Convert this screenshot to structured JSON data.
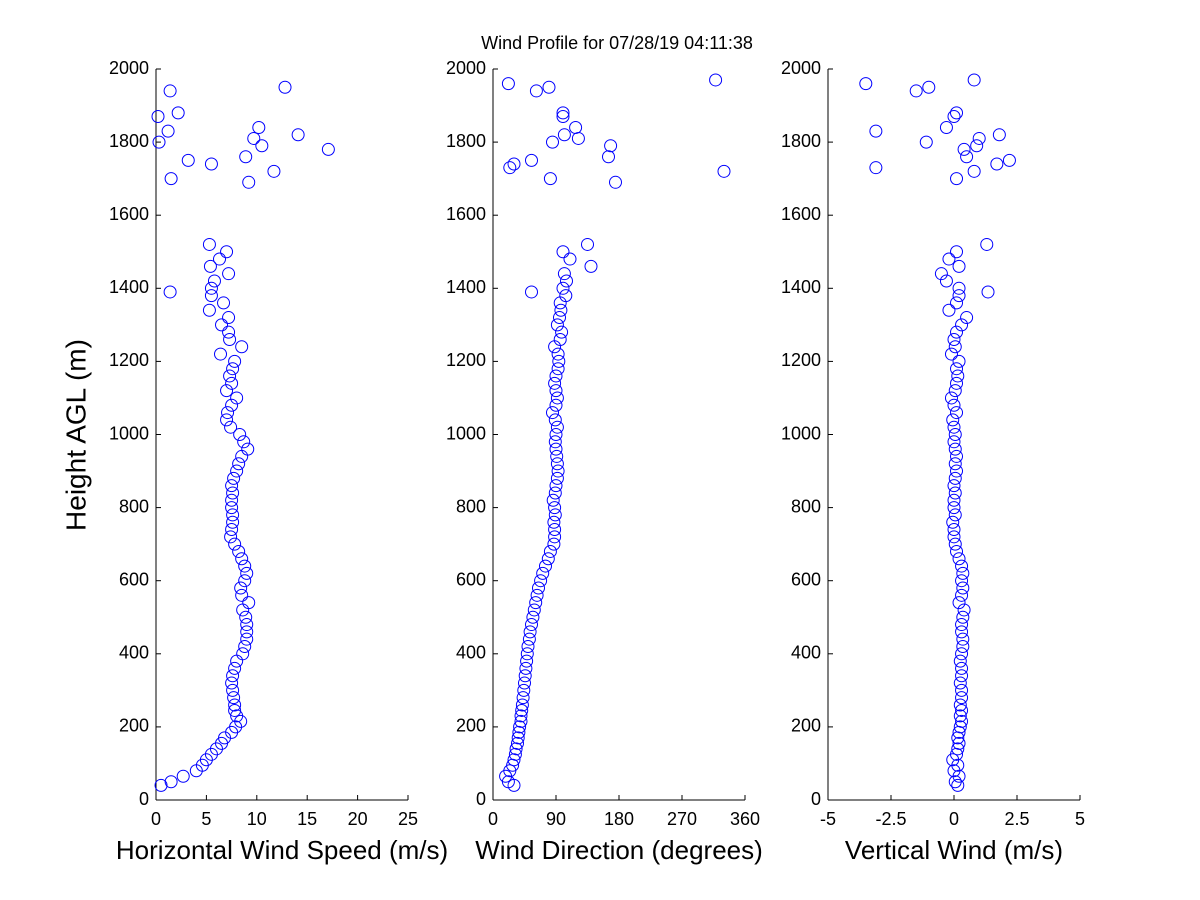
{
  "title": "Wind Profile for  07/28/19 04:11:38",
  "chart_data": [
    {
      "type": "scatter",
      "xlabel": "Horizontal Wind Speed (m/s)",
      "ylabel": "Height AGL (m)",
      "color": "#0000ff",
      "xlim": [
        0,
        25
      ],
      "xticks": [
        0,
        5,
        10,
        15,
        20,
        25
      ],
      "ylim": [
        0,
        2000
      ],
      "yticks": [
        0,
        200,
        400,
        600,
        800,
        1000,
        1200,
        1400,
        1600,
        1800,
        2000
      ],
      "x": [
        0.5,
        1.5,
        2.7,
        4,
        4.6,
        5,
        5.5,
        6,
        6.5,
        6.8,
        7.5,
        7.9,
        8.4,
        8,
        7.8,
        7.8,
        7.7,
        7.6,
        7.5,
        7.6,
        7.8,
        8,
        8.6,
        8.8,
        9,
        9,
        9,
        8.9,
        8.6,
        9.2,
        8.5,
        8.4,
        8.8,
        9,
        8.8,
        8.5,
        8.2,
        7.8,
        7.4,
        7.5,
        7.6,
        7.6,
        7.5,
        7.5,
        7.6,
        7.5,
        7.7,
        8,
        8.2,
        8.5,
        9.1,
        8.7,
        8.3,
        7.4,
        7,
        7.1,
        7.5,
        8,
        7,
        7.5,
        7.3,
        7.6,
        7.8,
        6.4,
        8.5,
        7.3,
        7.2,
        6.5,
        7.2,
        5.3,
        6.7,
        5.5,
        5.5,
        5.8,
        7.2,
        5.4,
        6.3,
        7,
        5.3,
        1.4,
        0.2,
        0.3,
        1.2,
        1.4,
        2.2,
        1.5,
        3.2,
        5.5,
        8.9,
        9.2,
        9.7,
        10.2,
        10.5,
        11.7,
        12.8,
        14.1,
        17.1
      ],
      "values": [
        40,
        50,
        65,
        80,
        95,
        110,
        125,
        140,
        155,
        170,
        185,
        200,
        215,
        230,
        245,
        260,
        280,
        300,
        320,
        340,
        360,
        380,
        400,
        420,
        440,
        460,
        480,
        500,
        520,
        540,
        560,
        580,
        600,
        620,
        640,
        660,
        680,
        700,
        720,
        740,
        760,
        780,
        800,
        820,
        840,
        860,
        880,
        900,
        920,
        940,
        960,
        980,
        1000,
        1020,
        1040,
        1060,
        1080,
        1100,
        1120,
        1140,
        1160,
        1180,
        1200,
        1220,
        1240,
        1260,
        1280,
        1300,
        1320,
        1340,
        1360,
        1380,
        1400,
        1420,
        1440,
        1460,
        1480,
        1500,
        1520,
        1390,
        1870,
        1800,
        1830,
        1940,
        1880,
        1700,
        1750,
        1740,
        1760,
        1690,
        1810,
        1840,
        1790,
        1720,
        1950,
        1820,
        1780
      ]
    },
    {
      "type": "scatter",
      "xlabel": "Wind Direction (degrees)",
      "color": "#0000ff",
      "xlim": [
        0,
        360
      ],
      "xticks": [
        0,
        90,
        180,
        270,
        360
      ],
      "ylim": [
        0,
        2000
      ],
      "yticks": [
        0,
        200,
        400,
        600,
        800,
        1000,
        1200,
        1400,
        1600,
        1800,
        2000
      ],
      "x": [
        30,
        22,
        18,
        24,
        28,
        30,
        32,
        33,
        35,
        36,
        37,
        38,
        40,
        40,
        41,
        42,
        43,
        44,
        45,
        46,
        47,
        48,
        49,
        50,
        52,
        53,
        55,
        57,
        59,
        61,
        63,
        65,
        68,
        71,
        75,
        79,
        82,
        87,
        88,
        88,
        87,
        89,
        88,
        86,
        89,
        90,
        92,
        93,
        92,
        91,
        90,
        89,
        90,
        92,
        89,
        85,
        90,
        92,
        90,
        88,
        90,
        93,
        94,
        93,
        88,
        96,
        98,
        92,
        95,
        97,
        96,
        104,
        100,
        105,
        102,
        140,
        110,
        100,
        135,
        55,
        22,
        24,
        30,
        55,
        62,
        80,
        82,
        85,
        100,
        100,
        102,
        118,
        122,
        168,
        165,
        175,
        318,
        330
      ],
      "values": [
        40,
        50,
        65,
        80,
        95,
        110,
        125,
        140,
        155,
        170,
        185,
        200,
        215,
        230,
        245,
        260,
        280,
        300,
        320,
        340,
        360,
        380,
        400,
        420,
        440,
        460,
        480,
        500,
        520,
        540,
        560,
        580,
        600,
        620,
        640,
        660,
        680,
        700,
        720,
        740,
        760,
        780,
        800,
        820,
        840,
        860,
        880,
        900,
        920,
        940,
        960,
        980,
        1000,
        1020,
        1040,
        1060,
        1080,
        1100,
        1120,
        1140,
        1160,
        1180,
        1200,
        1220,
        1240,
        1260,
        1280,
        1300,
        1320,
        1340,
        1360,
        1380,
        1400,
        1420,
        1440,
        1460,
        1480,
        1500,
        1520,
        1390,
        1960,
        1730,
        1740,
        1750,
        1940,
        1950,
        1700,
        1800,
        1880,
        1870,
        1820,
        1840,
        1810,
        1790,
        1760,
        1690,
        1970,
        1720
      ]
    },
    {
      "type": "scatter",
      "xlabel": "Vertical Wind (m/s)",
      "color": "#0000ff",
      "xlim": [
        -5,
        5
      ],
      "xticks": [
        -5,
        -2.5,
        0,
        2.5,
        5
      ],
      "ylim": [
        0,
        2000
      ],
      "yticks": [
        0,
        200,
        400,
        600,
        800,
        1000,
        1200,
        1400,
        1600,
        1800,
        2000
      ],
      "x": [
        0.15,
        0.05,
        0.2,
        0,
        0.15,
        -0.05,
        0.1,
        0.15,
        0.2,
        0.15,
        0.2,
        0.25,
        0.3,
        0.25,
        0.3,
        0.25,
        0.3,
        0.3,
        0.25,
        0.3,
        0.3,
        0.25,
        0.3,
        0.35,
        0.35,
        0.3,
        0.3,
        0.35,
        0.4,
        0.2,
        0.3,
        0.35,
        0.3,
        0.35,
        0.3,
        0.2,
        0.1,
        0.05,
        0,
        0,
        -0.05,
        0.05,
        0,
        0,
        0.05,
        0,
        0.05,
        0.1,
        0.05,
        0.1,
        0.05,
        0,
        0.05,
        0,
        -0.05,
        0.1,
        0,
        -0.1,
        0.05,
        0.1,
        0.15,
        0.1,
        0.2,
        -0.1,
        0.05,
        0,
        0.1,
        0.3,
        0.5,
        -0.2,
        0.1,
        0.2,
        0.2,
        -0.3,
        -0.5,
        0.2,
        -0.2,
        0.1,
        1.3,
        1.35,
        -3.5,
        -3.1,
        -3.1,
        -1.5,
        -1,
        -1.1,
        -0.3,
        0,
        0.1,
        0.1,
        0.4,
        0.5,
        0.8,
        0.8,
        0.9,
        1,
        1.8,
        1.7,
        2.2
      ],
      "values": [
        40,
        50,
        65,
        80,
        95,
        110,
        125,
        140,
        155,
        170,
        185,
        200,
        215,
        230,
        245,
        260,
        280,
        300,
        320,
        340,
        360,
        380,
        400,
        420,
        440,
        460,
        480,
        500,
        520,
        540,
        560,
        580,
        600,
        620,
        640,
        660,
        680,
        700,
        720,
        740,
        760,
        780,
        800,
        820,
        840,
        860,
        880,
        900,
        920,
        940,
        960,
        980,
        1000,
        1020,
        1040,
        1060,
        1080,
        1100,
        1120,
        1140,
        1160,
        1180,
        1200,
        1220,
        1240,
        1260,
        1280,
        1300,
        1320,
        1340,
        1360,
        1380,
        1400,
        1420,
        1440,
        1460,
        1480,
        1500,
        1520,
        1390,
        1960,
        1830,
        1730,
        1940,
        1950,
        1800,
        1840,
        1870,
        1880,
        1700,
        1780,
        1760,
        1970,
        1720,
        1790,
        1810,
        1820,
        1740,
        1750
      ]
    }
  ]
}
